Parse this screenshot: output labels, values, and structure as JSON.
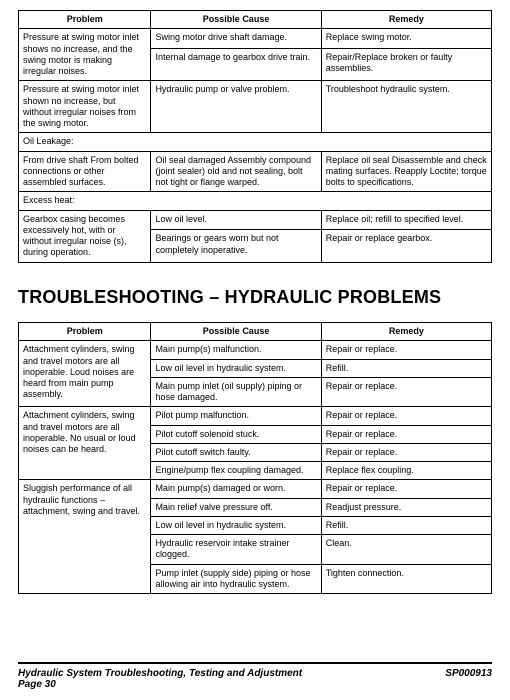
{
  "table1": {
    "headers": [
      "Problem",
      "Possible Cause",
      "Remedy"
    ],
    "rows": [
      {
        "p": "Pressure at swing motor inlet shows no increase, and the swing motor is making irregular noises.",
        "c": "Swing motor drive shaft damage.",
        "r": "Replace swing motor.",
        "prow": 2
      },
      {
        "c": "Internal damage to gearbox drive train.",
        "r": "Repair/Replace broken or faulty assemblies."
      },
      {
        "p": "Pressure at swing motor inlet shown no increase, but without irregular noises from the swing motor.",
        "c": "Hydraulic pump or valve problem.",
        "r": "Troubleshoot hydraulic system."
      },
      {
        "p": "Oil Leakage:",
        "span": true
      },
      {
        "p": "From drive shaft From bolted connections or other assembled surfaces.",
        "c": "Oil seal damaged Assembly compound (joint sealer) old and not sealing, bolt not tight or flange warped.",
        "r": "Replace oil seal Disassemble and check mating surfaces. Reapply Loctite; torque bolts to specifications."
      },
      {
        "p": "Excess heat:",
        "span": true
      },
      {
        "p": "Gearbox casing becomes excessively hot, with or without irregular noise (s), during operation.",
        "c": "Low oil level.",
        "r": "Replace oil; refill to specified level.",
        "prow": 2
      },
      {
        "c": "Bearings or gears worn but not completely inoperative.",
        "r": "Repair or replace gearbox."
      }
    ]
  },
  "heading": "TROUBLESHOOTING – HYDRAULIC PROBLEMS",
  "table2": {
    "headers": [
      "Problem",
      "Possible Cause",
      "Remedy"
    ],
    "rows": [
      {
        "p": "Attachment cylinders, swing and travel motors are all inoperable. Loud noises are heard from main pump assembly.",
        "c": "Main pump(s) malfunction.",
        "r": "Repair or replace.",
        "prow": 3
      },
      {
        "c": "Low oil level in hydraulic system.",
        "r": "Refill."
      },
      {
        "c": "Main pump inlet (oil supply) piping or hose damaged.",
        "r": "Repair or replace."
      },
      {
        "p": "Attachment cylinders, swing and travel motors are all inoperable. No usual or loud noises can be heard.",
        "c": "Pilot pump malfunction.",
        "r": "Repair or replace.",
        "prow": 4
      },
      {
        "c": "Pilot cutoff solenoid stuck.",
        "r": "Repair or replace."
      },
      {
        "c": "Pilot cutoff switch faulty.",
        "r": "Repair or replace."
      },
      {
        "c": "Engine/pump flex coupling damaged.",
        "r": "Replace flex coupling."
      },
      {
        "p": "Sluggish performance of all hydraulic functions – attachment, swing and travel.",
        "c": "Main pump(s) damaged or worn.",
        "r": "Repair or replace.",
        "prow": 5
      },
      {
        "c": "Main relief valve pressure off.",
        "r": "Readjust pressure."
      },
      {
        "c": "Low oil level in hydraulic system.",
        "r": "Refill."
      },
      {
        "c": "Hydraulic reservoir intake strainer clogged.",
        "r": "Clean."
      },
      {
        "c": "Pump inlet (supply side) piping or hose allowing air into hydraulic system.",
        "r": "Tighten connection."
      }
    ]
  },
  "footer": {
    "left1": "Hydraulic System Troubleshooting, Testing and Adjustment",
    "left2": "Page 30",
    "right": "SP000913"
  }
}
